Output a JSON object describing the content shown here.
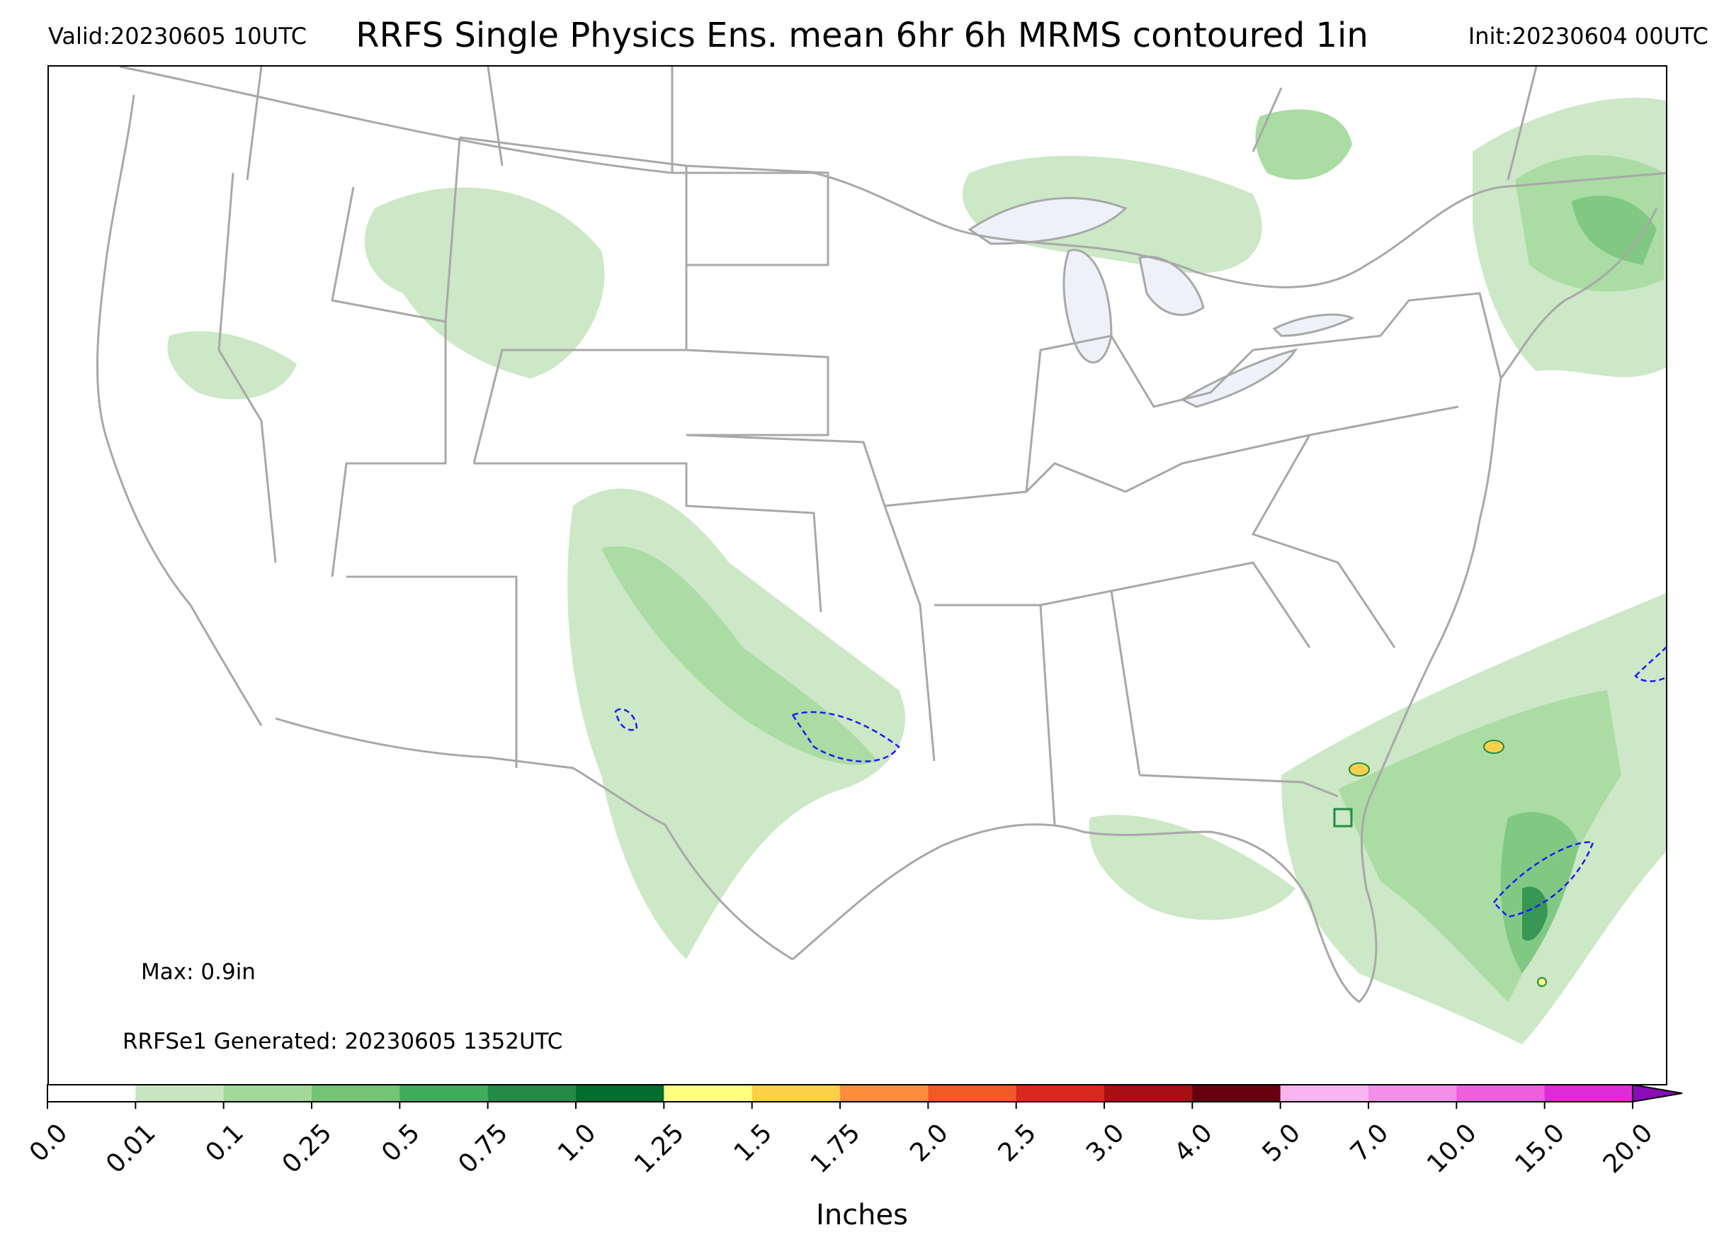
{
  "header": {
    "valid": "Valid:20230605 10UTC",
    "title": "RRFS Single Physics Ens. mean 6hr 6h MRMS contoured 1in",
    "init": "Init:20230604 00UTC"
  },
  "annotations": {
    "max": "Max: 0.9in",
    "generated": "RRFSe1 Generated: 20230605 1352UTC"
  },
  "colorbar": {
    "units": "Inches",
    "ticks": [
      "0.0",
      "0.01",
      "0.1",
      "0.25",
      "0.5",
      "0.75",
      "1.0",
      "1.25",
      "1.5",
      "1.75",
      "2.0",
      "2.5",
      "3.0",
      "4.0",
      "5.0",
      "7.0",
      "10.0",
      "15.0",
      "20.0"
    ],
    "colors": [
      "#ffffff",
      "#c7e6c0",
      "#a1d99b",
      "#74c476",
      "#41ab5d",
      "#238b45",
      "#006d2c",
      "#ffff80",
      "#fdd049",
      "#fd8d3c",
      "#f05a28",
      "#d9281e",
      "#a50f15",
      "#67000d",
      "#f7b4f0",
      "#f38fe8",
      "#ee5ee0",
      "#dd2bd8",
      "#b515c8",
      "#8a0bb8"
    ]
  },
  "map_legend": {
    "precip_colors": {
      "light": "#c7e6c0",
      "medium": "#a1d99b",
      "heavy": "#74c476",
      "very_heavy": "#41ab5d",
      "extreme": "#238b45",
      "max": "#006d2c"
    },
    "mrms_contour_color": "#1a1aff",
    "border_color": "#a8a8a8",
    "lake_fill": "#eef2f8"
  }
}
